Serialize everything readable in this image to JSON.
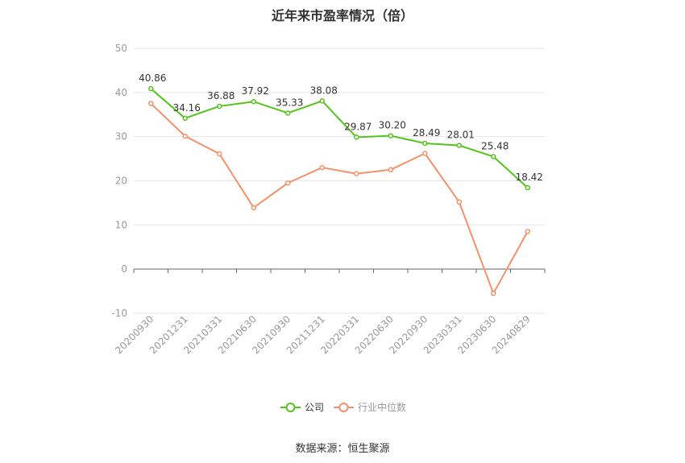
{
  "title": "近年来市盈率情况（倍）",
  "source": "数据来源：恒生聚源",
  "colors": {
    "company": "#52c41a",
    "industry": "#f4916a",
    "grid": "#e6e6e6",
    "axis": "#666666"
  },
  "chart_data": {
    "type": "line",
    "title": "近年来市盈率情况（倍）",
    "categories": [
      "20200930",
      "20201231",
      "20210331",
      "20210630",
      "20210930",
      "20211231",
      "20220331",
      "20220630",
      "20220930",
      "20230331",
      "20230630",
      "20240829"
    ],
    "series": [
      {
        "name": "公司",
        "values": [
          40.86,
          34.16,
          36.88,
          37.92,
          35.33,
          38.08,
          29.87,
          30.2,
          28.49,
          28.01,
          25.48,
          18.42
        ],
        "labels": [
          "40.86",
          "34.16",
          "36.88",
          "37.92",
          "35.33",
          "38.08",
          "29.87",
          "30.20",
          "28.49",
          "28.01",
          "25.48",
          "18.42"
        ]
      },
      {
        "name": "行业中位数",
        "values": [
          37.5,
          30.1,
          26.1,
          13.9,
          19.5,
          23.0,
          21.6,
          22.5,
          26.2,
          15.2,
          -5.5,
          8.5
        ]
      }
    ],
    "y_ticks": [
      "50",
      "40",
      "30",
      "20",
      "10",
      "0",
      "-10"
    ],
    "ylim": [
      -10,
      50
    ],
    "grid": true,
    "legend": "bottom-center"
  }
}
